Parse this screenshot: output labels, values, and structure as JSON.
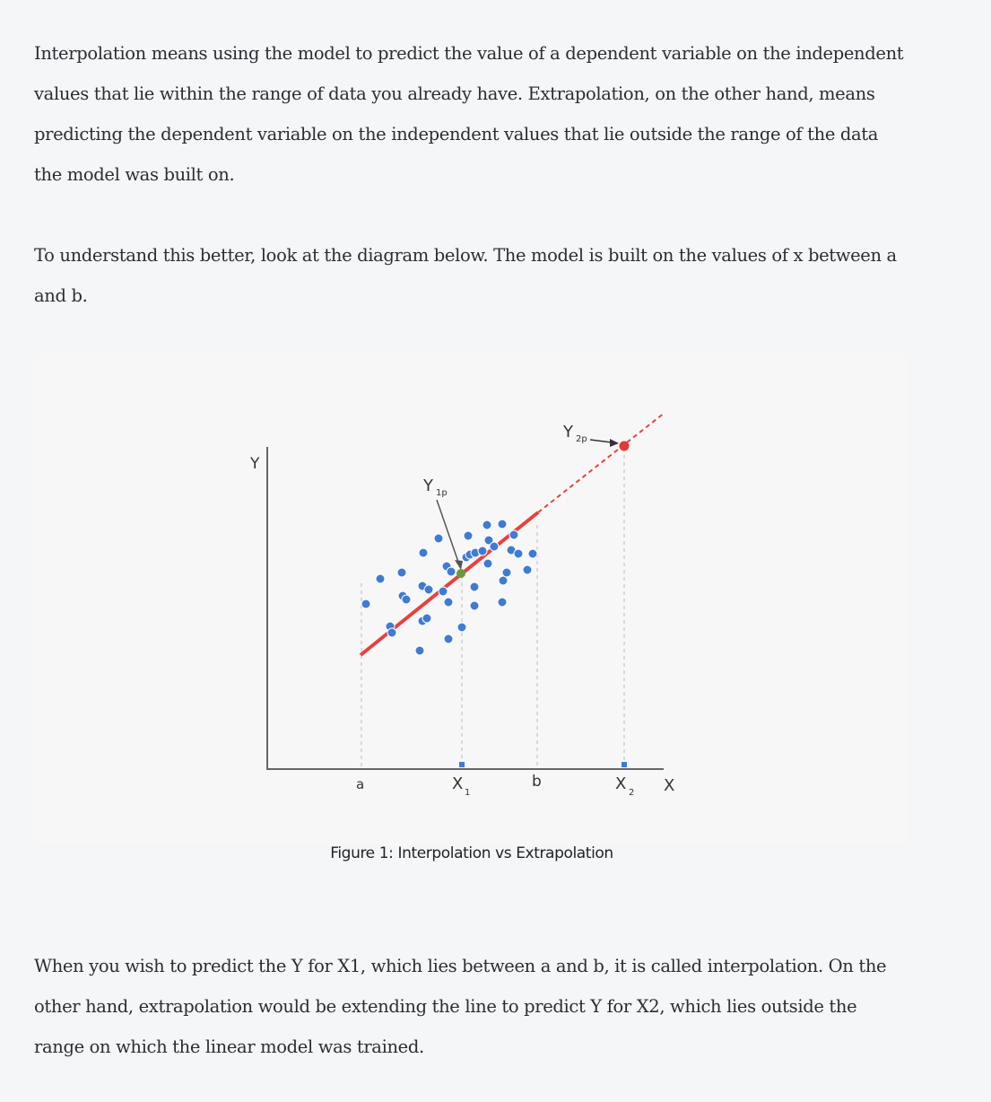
{
  "article": {
    "paragraph_1": "Interpolation means using the model to predict the value of a dependent variable on the independent values that lie within the range of data you already have. Extrapolation, on the other hand, means predicting the dependent variable on the independent values that lie outside the range of the data the model was built on.",
    "paragraph_2": "To understand this better, look at the diagram below. The model is built on the values of x between a and b.",
    "paragraph_3": "When you wish to predict the Y for X1, which lies between a and b, it is called interpolation. On the other hand, extrapolation would be extending the line to predict Y for X2, which lies outside the range on which the linear model was trained."
  },
  "figure": {
    "caption": "Figure 1: Interpolation vs Extrapolation",
    "labels": {
      "y_axis": "Y",
      "x_axis": "X",
      "a": "a",
      "b": "b",
      "x1_main": "X",
      "x1_sub": "1",
      "x2_main": "X",
      "x2_sub": "2",
      "y1p_main": "Y",
      "y1p_sub": "1p",
      "y2p_main": "Y",
      "y2p_sub": "2p"
    },
    "colors": {
      "point": "#3f7bd4",
      "fit_line": "#e8413c",
      "interpolated_point": "#6a9b3b",
      "extrapolated_point": "#e03c36",
      "axis": "#666666"
    },
    "icons": [
      "arrow-icon"
    ]
  }
}
